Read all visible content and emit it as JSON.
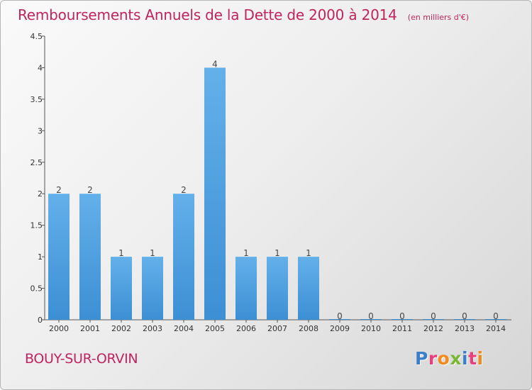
{
  "header": {
    "title": "Remboursements Annuels de la Dette de 2000 à 2014",
    "units": "(en milliers d'€)"
  },
  "footer": {
    "commune": "BOUY-SUR-ORVIN",
    "logo_text": "Proxiti"
  },
  "colors": {
    "bar": "#3d8fd4",
    "bar_light": "#63b0ea",
    "title": "#c0245c",
    "logo": [
      "#3a7fc8",
      "#e7407a",
      "#f28a1e",
      "#78b832",
      "#3a7fc8",
      "#e7407a",
      "#f28a1e"
    ]
  },
  "chart_data": {
    "type": "bar",
    "title": "Remboursements Annuels de la Dette de 2000 à 2014",
    "subtitle": "(en milliers d'€)",
    "xlabel": "",
    "ylabel": "",
    "categories": [
      "2000",
      "2001",
      "2002",
      "2003",
      "2004",
      "2005",
      "2006",
      "2007",
      "2008",
      "2009",
      "2010",
      "2011",
      "2012",
      "2013",
      "2014"
    ],
    "values": [
      2,
      2,
      1,
      1,
      2,
      4,
      1,
      1,
      1,
      0,
      0,
      0,
      0,
      0,
      0
    ],
    "data_labels": [
      "2",
      "2",
      "1",
      "1",
      "2",
      "4",
      "1",
      "1",
      "1",
      "0",
      "0",
      "0",
      "0",
      "0",
      "0"
    ],
    "ylim": [
      0,
      4.5
    ],
    "yticks": [
      0,
      0.5,
      1,
      1.5,
      2,
      2.5,
      3,
      3.5,
      4,
      4.5
    ],
    "ytick_labels": [
      "0",
      "0.5",
      "1",
      "1.5",
      "2",
      "2.5",
      "3",
      "3.5",
      "4",
      "4.5"
    ],
    "grid": false,
    "legend": "none"
  }
}
